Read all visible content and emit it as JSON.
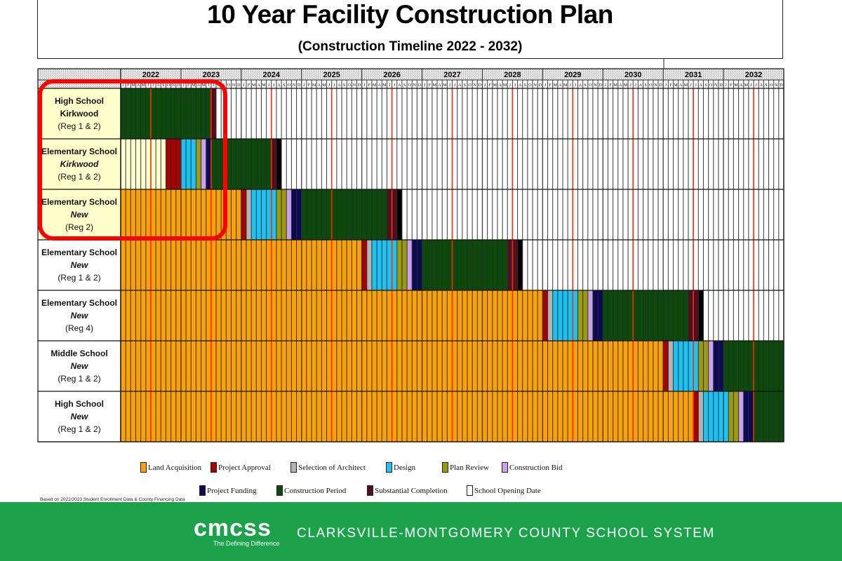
{
  "title": "10 Year Facility Construction Plan",
  "subtitle": "(Construction Timeline 2022 - 2032)",
  "note": "Based on 2022/2023 Student Enrollment Data & County Financing Data",
  "footer": {
    "logo": "cmcss",
    "tagline": "The Defining Difference",
    "org": "CLARKSVILLE-MONTGOMERY COUNTY SCHOOL SYSTEM",
    "color": "#1ba24b"
  },
  "chart_data": {
    "type": "gantt",
    "title": "10 Year Facility Construction Plan",
    "years": [
      "2022",
      "2023",
      "2024",
      "2025",
      "2026",
      "2027",
      "2028",
      "2029",
      "2030",
      "2031",
      "2032"
    ],
    "month_letters": [
      "J",
      "F",
      "M",
      "A",
      "M",
      "J",
      "J",
      "A",
      "S",
      "O",
      "N",
      "D"
    ],
    "marker_month": "July",
    "marker_color": "#ff2a00",
    "highlight_color": "#ff0000",
    "phases": [
      {
        "key": "land",
        "label": "Land Acquisition",
        "color": "#f9a10b"
      },
      {
        "key": "approval",
        "label": "Project Approval",
        "color": "#a80000"
      },
      {
        "key": "architect",
        "label": "Selection of Architect",
        "color": "#b4b4b4"
      },
      {
        "key": "design",
        "label": "Design",
        "color": "#1ec2f2"
      },
      {
        "key": "review",
        "label": "Plan Review",
        "color": "#9c9a12"
      },
      {
        "key": "bid",
        "label": "Construction Bid",
        "color": "#c9a2ea"
      },
      {
        "key": "funding",
        "label": "Project Funding",
        "color": "#0b0b55"
      },
      {
        "key": "construction",
        "label": "Construction Period",
        "color": "#0c4a0c"
      },
      {
        "key": "substantial",
        "label": "Substantial Completion",
        "color": "#4e1020"
      },
      {
        "key": "opening",
        "label": "School Opening Date",
        "color": "#000000",
        "legend_color": "#ffffff"
      }
    ],
    "rows": [
      {
        "lines": [
          "High School",
          "Kirkwood",
          "(Reg 1 & 2)"
        ],
        "italic": false,
        "bg": "#ffffcc",
        "highlighted": true,
        "segments": [
          {
            "phase": "construction",
            "start": "2022-01",
            "months": 18
          },
          {
            "phase": "substantial",
            "start": "2023-07",
            "months": 1
          }
        ]
      },
      {
        "lines": [
          "Elementary School",
          "Kirkwood",
          "(Reg 1 & 2)"
        ],
        "italic": true,
        "bg": "#ffffcc",
        "highlighted": true,
        "segments": [
          {
            "phase": "past",
            "start": "2022-01",
            "months": 9,
            "color": "#ffffd0"
          },
          {
            "phase": "approval",
            "start": "2022-10",
            "months": 3
          },
          {
            "phase": "design",
            "start": "2023-01",
            "months": 3
          },
          {
            "phase": "review",
            "start": "2023-04",
            "months": 1
          },
          {
            "phase": "bid",
            "start": "2023-05",
            "months": 1
          },
          {
            "phase": "funding",
            "start": "2023-06",
            "months": 1
          },
          {
            "phase": "construction",
            "start": "2023-07",
            "months": 12
          },
          {
            "phase": "substantial",
            "start": "2024-07",
            "months": 1
          },
          {
            "phase": "opening",
            "start": "2024-08",
            "months": 1
          }
        ]
      },
      {
        "lines": [
          "Elementary School",
          "New",
          "(Reg 2)"
        ],
        "italic": true,
        "bg": "#ffffcc",
        "highlighted": true,
        "segments": [
          {
            "phase": "land",
            "start": "2022-01",
            "months": 24
          },
          {
            "phase": "approval",
            "start": "2024-01",
            "months": 1
          },
          {
            "phase": "architect",
            "start": "2024-02",
            "months": 1
          },
          {
            "phase": "design",
            "start": "2024-03",
            "months": 5
          },
          {
            "phase": "review",
            "start": "2024-08",
            "months": 2
          },
          {
            "phase": "bid",
            "start": "2024-10",
            "months": 1
          },
          {
            "phase": "funding",
            "start": "2024-11",
            "months": 2
          },
          {
            "phase": "construction",
            "start": "2025-01",
            "months": 17
          },
          {
            "phase": "substantial",
            "start": "2026-06",
            "months": 2
          },
          {
            "phase": "opening",
            "start": "2026-08",
            "months": 1
          }
        ]
      },
      {
        "lines": [
          "Elementary School",
          "New",
          "(Reg 1 & 2)"
        ],
        "italic": true,
        "bg": "#ffffff",
        "highlighted": false,
        "segments": [
          {
            "phase": "land",
            "start": "2022-01",
            "months": 48
          },
          {
            "phase": "approval",
            "start": "2026-01",
            "months": 1
          },
          {
            "phase": "architect",
            "start": "2026-02",
            "months": 1
          },
          {
            "phase": "design",
            "start": "2026-03",
            "months": 5
          },
          {
            "phase": "review",
            "start": "2026-08",
            "months": 2
          },
          {
            "phase": "bid",
            "start": "2026-10",
            "months": 1
          },
          {
            "phase": "funding",
            "start": "2026-11",
            "months": 2
          },
          {
            "phase": "construction",
            "start": "2027-01",
            "months": 17
          },
          {
            "phase": "substantial",
            "start": "2028-06",
            "months": 2
          },
          {
            "phase": "opening",
            "start": "2028-08",
            "months": 1
          }
        ]
      },
      {
        "lines": [
          "Elementary School",
          "New",
          "(Reg 4)"
        ],
        "italic": true,
        "bg": "#ffffff",
        "highlighted": false,
        "segments": [
          {
            "phase": "land",
            "start": "2022-01",
            "months": 84
          },
          {
            "phase": "approval",
            "start": "2029-01",
            "months": 1
          },
          {
            "phase": "architect",
            "start": "2029-02",
            "months": 1
          },
          {
            "phase": "design",
            "start": "2029-03",
            "months": 5
          },
          {
            "phase": "review",
            "start": "2029-08",
            "months": 2
          },
          {
            "phase": "bid",
            "start": "2029-10",
            "months": 1
          },
          {
            "phase": "funding",
            "start": "2029-11",
            "months": 2
          },
          {
            "phase": "construction",
            "start": "2030-01",
            "months": 17
          },
          {
            "phase": "substantial",
            "start": "2031-06",
            "months": 2
          },
          {
            "phase": "opening",
            "start": "2031-08",
            "months": 1
          }
        ]
      },
      {
        "lines": [
          "Middle School",
          "New",
          "(Reg 1 & 2)"
        ],
        "italic": true,
        "bg": "#ffffff",
        "highlighted": false,
        "segments": [
          {
            "phase": "land",
            "start": "2022-01",
            "months": 108
          },
          {
            "phase": "approval",
            "start": "2031-01",
            "months": 1
          },
          {
            "phase": "architect",
            "start": "2031-02",
            "months": 1
          },
          {
            "phase": "design",
            "start": "2031-03",
            "months": 5
          },
          {
            "phase": "review",
            "start": "2031-08",
            "months": 2
          },
          {
            "phase": "bid",
            "start": "2031-10",
            "months": 1
          },
          {
            "phase": "funding",
            "start": "2031-11",
            "months": 2
          },
          {
            "phase": "construction",
            "start": "2032-01",
            "months": 12
          }
        ]
      },
      {
        "lines": [
          "High School",
          "New",
          "(Reg 1 & 2)"
        ],
        "italic": true,
        "bg": "#ffffff",
        "highlighted": false,
        "segments": [
          {
            "phase": "land",
            "start": "2022-01",
            "months": 114
          },
          {
            "phase": "approval",
            "start": "2031-07",
            "months": 1
          },
          {
            "phase": "architect",
            "start": "2031-08",
            "months": 1
          },
          {
            "phase": "design",
            "start": "2031-09",
            "months": 5
          },
          {
            "phase": "review",
            "start": "2032-02",
            "months": 2
          },
          {
            "phase": "bid",
            "start": "2032-04",
            "months": 1
          },
          {
            "phase": "funding",
            "start": "2032-05",
            "months": 2
          },
          {
            "phase": "construction",
            "start": "2032-07",
            "months": 6
          }
        ]
      }
    ]
  }
}
